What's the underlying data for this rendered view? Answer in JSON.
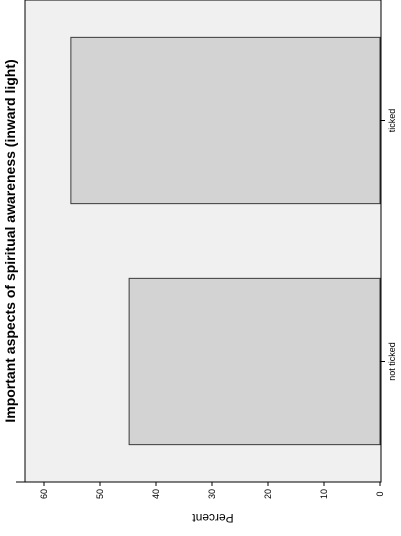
{
  "chart_data": {
    "type": "bar",
    "orientation": "rotated",
    "title": "Important aspects of spiritual awareness (inward light)",
    "xlabel": "",
    "ylabel": "Percent",
    "categories": [
      "not ticked",
      "ticked"
    ],
    "values": [
      44.8,
      55.2
    ],
    "ylim": [
      0,
      65
    ],
    "yticks": [
      0,
      10,
      20,
      30,
      40,
      50,
      60
    ],
    "grid": false,
    "legend": "none",
    "colors": {
      "plot_background": "#f0f0f0",
      "bar_fill": "#d3d3d3",
      "bar_stroke": "#3a3a3a",
      "axis": "#000000",
      "text": "#000000"
    }
  }
}
